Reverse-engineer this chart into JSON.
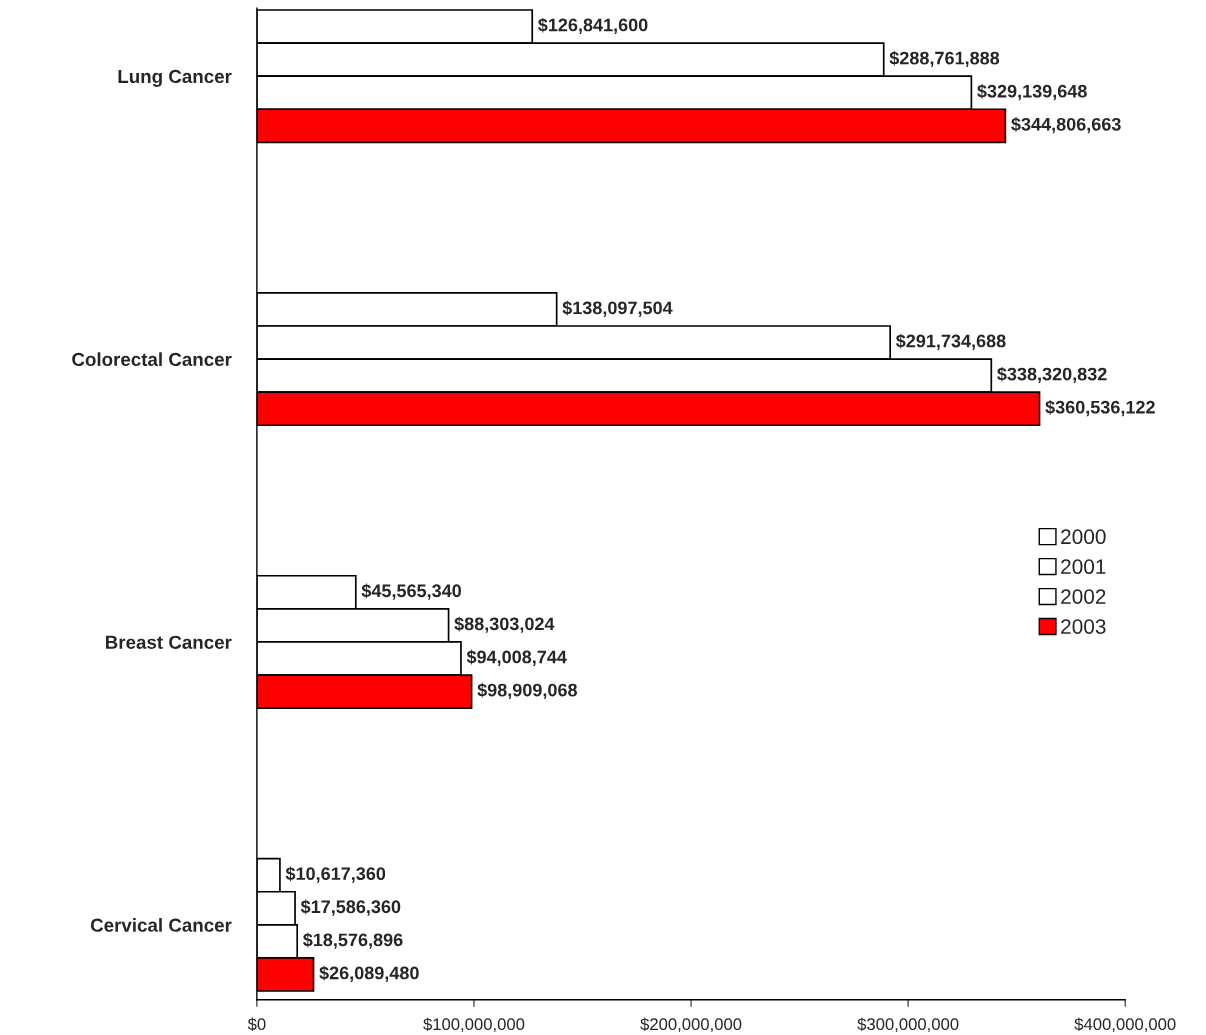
{
  "chart_data": {
    "type": "bar",
    "orientation": "horizontal",
    "categories": [
      "Lung Cancer",
      "Colorectal Cancer",
      "Breast Cancer",
      "Cervical Cancer"
    ],
    "series": [
      {
        "name": "2000",
        "color": "#ffffff",
        "values": [
          126841600,
          138097504,
          45565340,
          10617360
        ],
        "value_labels": [
          "$126,841,600",
          "$138,097,504",
          "$45,565,340",
          "$10,617,360"
        ]
      },
      {
        "name": "2001",
        "color": "#ffffff",
        "values": [
          288761888,
          291734688,
          88303024,
          17586360
        ],
        "value_labels": [
          "$288,761,888",
          "$291,734,688",
          "$88,303,024",
          "$17,586,360"
        ]
      },
      {
        "name": "2002",
        "color": "#ffffff",
        "values": [
          329139648,
          338320832,
          94008744,
          18576896
        ],
        "value_labels": [
          "$329,139,648",
          "$338,320,832",
          "$94,008,744",
          "$18,576,896"
        ]
      },
      {
        "name": "2003",
        "color": "#ff0000",
        "values": [
          344806663,
          360536122,
          98909068,
          26089480
        ],
        "value_labels": [
          "$344,806,663",
          "$360,536,122",
          "$98,909,068",
          "$26,089,480"
        ]
      }
    ],
    "xlim": [
      0,
      400000000
    ],
    "xticks": [
      {
        "value": 0,
        "label": "$0"
      },
      {
        "value": 100000000,
        "label": "$100,000,000"
      },
      {
        "value": 200000000,
        "label": "$200,000,000"
      },
      {
        "value": 300000000,
        "label": "$300,000,000"
      },
      {
        "value": 400000000,
        "label": "$400,000,000"
      }
    ],
    "legend": "right",
    "grid": false
  }
}
